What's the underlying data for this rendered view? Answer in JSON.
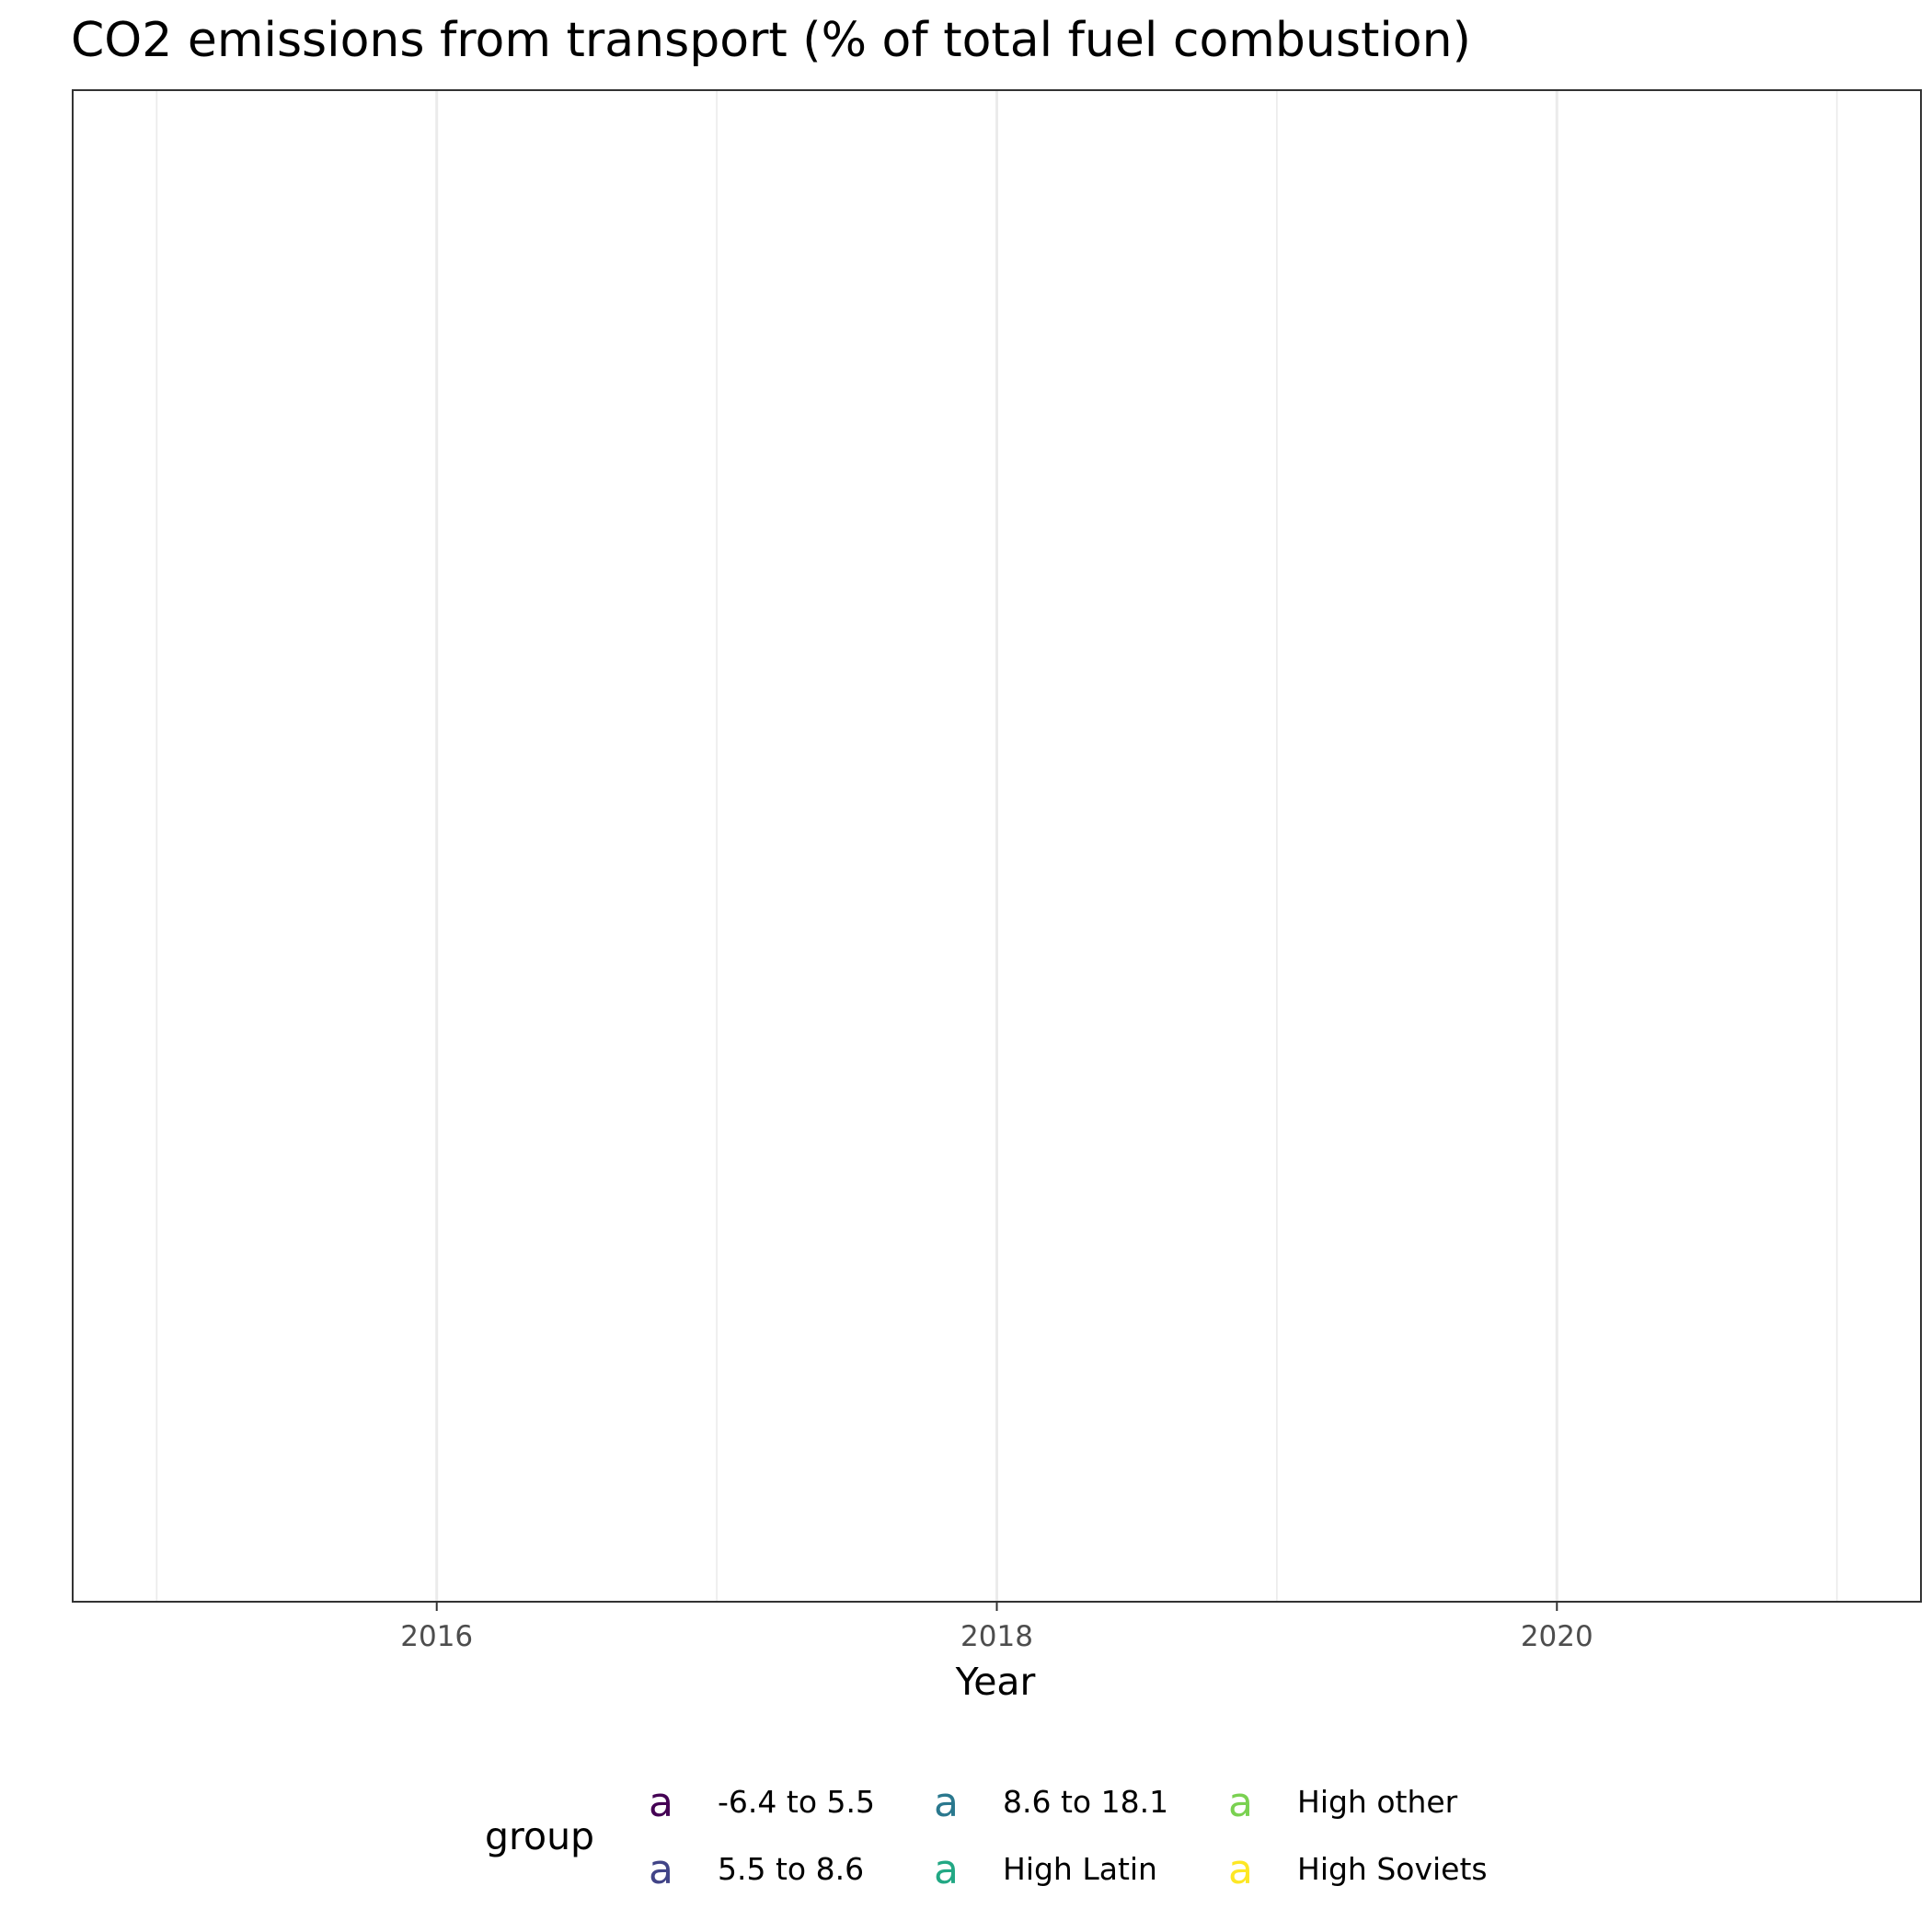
{
  "chart_data": {
    "type": "scatter",
    "title": "CO2 emissions from transport (% of total fuel combustion)",
    "xlabel": "Year",
    "ylabel": "",
    "xlim": [
      2014.7,
      2021.3
    ],
    "x_major_ticks": [
      2016,
      2018,
      2020
    ],
    "x_minor_ticks": [
      2015,
      2017,
      2019,
      2021
    ],
    "x_tick_labels": [
      "2016",
      "2018",
      "2020"
    ],
    "grid": {
      "vertical": true,
      "horizontal": false
    },
    "legend": {
      "title": "group",
      "placement": "bottom",
      "key_glyph": "a",
      "entries": [
        {
          "label": "-6.4 to 5.5",
          "color": "#440154"
        },
        {
          "label": "5.5 to 8.6",
          "color": "#414487"
        },
        {
          "label": "8.6 to 18.1",
          "color": "#2A788E"
        },
        {
          "label": "High Latin",
          "color": "#22A884"
        },
        {
          "label": "High other",
          "color": "#7AD151"
        },
        {
          "label": "High Soviets",
          "color": "#FDE725"
        }
      ]
    },
    "series": []
  }
}
